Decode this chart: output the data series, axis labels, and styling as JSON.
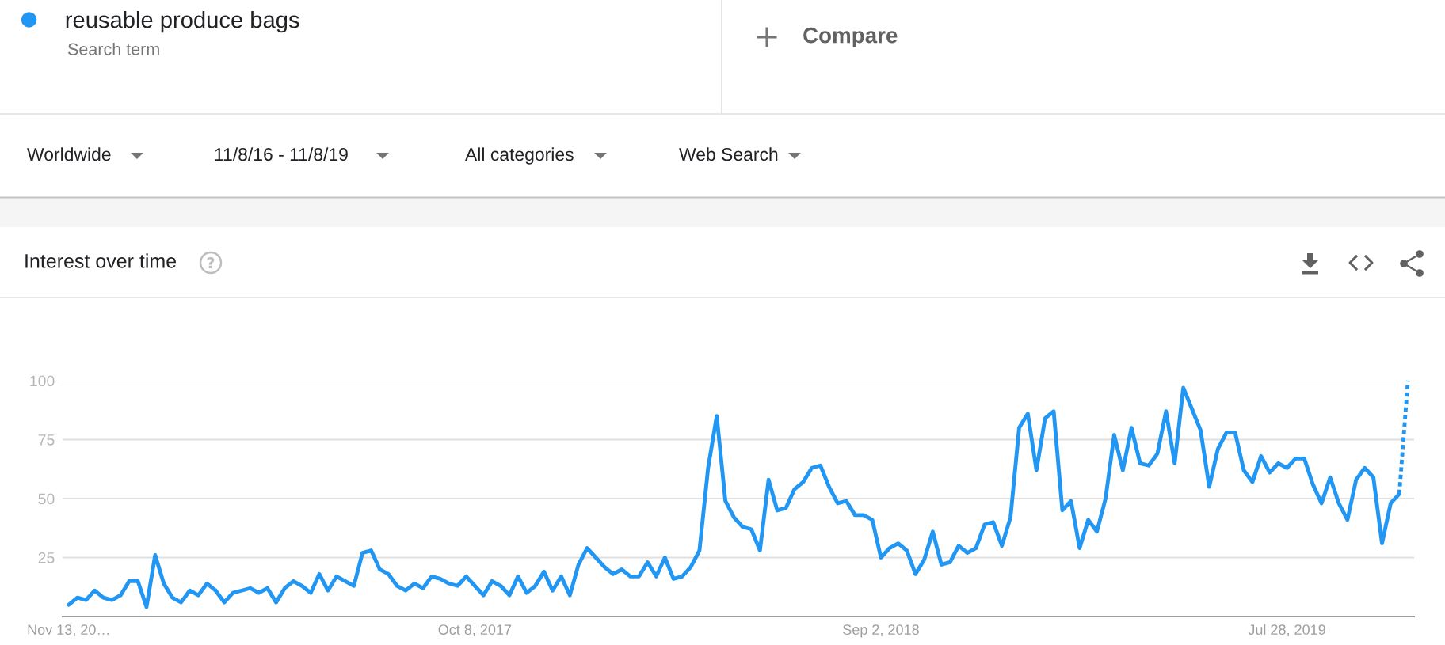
{
  "chart_data": {
    "type": "line",
    "title": "Interest over time",
    "annotations": [
      "Search term",
      "Compare",
      "Worldwide",
      "11/8/16 - 11/8/19",
      "All categories",
      "Web Search"
    ],
    "x": [
      "2016-11-13",
      "2016-11-20",
      "2016-11-27",
      "2016-12-04",
      "2016-12-11",
      "2016-12-18",
      "2016-12-25",
      "2017-01-01",
      "2017-01-08",
      "2017-01-15",
      "2017-01-22",
      "2017-01-29",
      "2017-02-05",
      "2017-02-12",
      "2017-02-19",
      "2017-02-26",
      "2017-03-05",
      "2017-03-12",
      "2017-03-19",
      "2017-03-26",
      "2017-04-02",
      "2017-04-09",
      "2017-04-16",
      "2017-04-23",
      "2017-04-30",
      "2017-05-07",
      "2017-05-14",
      "2017-05-21",
      "2017-05-28",
      "2017-06-04",
      "2017-06-11",
      "2017-06-18",
      "2017-06-25",
      "2017-07-02",
      "2017-07-09",
      "2017-07-16",
      "2017-07-23",
      "2017-07-30",
      "2017-08-06",
      "2017-08-13",
      "2017-08-20",
      "2017-08-27",
      "2017-09-03",
      "2017-09-10",
      "2017-09-17",
      "2017-09-24",
      "2017-10-01",
      "2017-10-08",
      "2017-10-15",
      "2017-10-22",
      "2017-10-29",
      "2017-11-05",
      "2017-11-12",
      "2017-11-19",
      "2017-11-26",
      "2017-12-03",
      "2017-12-10",
      "2017-12-17",
      "2017-12-24",
      "2017-12-31",
      "2018-01-07",
      "2018-01-14",
      "2018-01-21",
      "2018-01-28",
      "2018-02-04",
      "2018-02-11",
      "2018-02-18",
      "2018-02-25",
      "2018-03-04",
      "2018-03-11",
      "2018-03-18",
      "2018-03-25",
      "2018-04-01",
      "2018-04-08",
      "2018-04-15",
      "2018-04-22",
      "2018-04-29",
      "2018-05-06",
      "2018-05-13",
      "2018-05-20",
      "2018-05-27",
      "2018-06-03",
      "2018-06-10",
      "2018-06-17",
      "2018-06-24",
      "2018-07-01",
      "2018-07-08",
      "2018-07-15",
      "2018-07-22",
      "2018-07-29",
      "2018-08-05",
      "2018-08-12",
      "2018-08-19",
      "2018-08-26",
      "2018-09-02",
      "2018-09-09",
      "2018-09-16",
      "2018-09-23",
      "2018-09-30",
      "2018-10-07",
      "2018-10-14",
      "2018-10-21",
      "2018-10-28",
      "2018-11-04",
      "2018-11-11",
      "2018-11-18",
      "2018-11-25",
      "2018-12-02",
      "2018-12-09",
      "2018-12-16",
      "2018-12-23",
      "2018-12-30",
      "2019-01-06",
      "2019-01-13",
      "2019-01-20",
      "2019-01-27",
      "2019-02-03",
      "2019-02-10",
      "2019-02-17",
      "2019-02-24",
      "2019-03-03",
      "2019-03-10",
      "2019-03-17",
      "2019-03-24",
      "2019-03-31",
      "2019-04-07",
      "2019-04-14",
      "2019-04-21",
      "2019-04-28",
      "2019-05-05",
      "2019-05-12",
      "2019-05-19",
      "2019-05-26",
      "2019-06-02",
      "2019-06-09",
      "2019-06-16",
      "2019-06-23",
      "2019-06-30",
      "2019-07-07",
      "2019-07-14",
      "2019-07-21",
      "2019-07-28",
      "2019-08-04",
      "2019-08-11",
      "2019-08-18",
      "2019-08-25",
      "2019-09-01",
      "2019-09-08",
      "2019-09-15",
      "2019-09-22",
      "2019-09-29",
      "2019-10-06",
      "2019-10-13",
      "2019-10-20",
      "2019-10-27"
    ],
    "series": [
      {
        "name": "reusable produce bags",
        "color": "#2196f3",
        "values": [
          5,
          8,
          7,
          11,
          8,
          7,
          9,
          15,
          15,
          4,
          26,
          14,
          8,
          6,
          11,
          9,
          14,
          11,
          6,
          10,
          11,
          12,
          10,
          12,
          6,
          12,
          15,
          13,
          10,
          18,
          11,
          17,
          15,
          13,
          27,
          28,
          20,
          18,
          13,
          11,
          14,
          12,
          17,
          16,
          14,
          13,
          17,
          13,
          9,
          15,
          13,
          9,
          17,
          10,
          13,
          19,
          11,
          17,
          9,
          22,
          29,
          25,
          21,
          18,
          20,
          17,
          17,
          23,
          17,
          25,
          16,
          17,
          21,
          28,
          63,
          85,
          49,
          42,
          38,
          37,
          28,
          58,
          45,
          46,
          54,
          57,
          63,
          64,
          55,
          48,
          49,
          43,
          43,
          41,
          25,
          29,
          31,
          28,
          18,
          24,
          36,
          22,
          23,
          30,
          27,
          29,
          39,
          40,
          30,
          42,
          80,
          86,
          62,
          84,
          87,
          45,
          49,
          29,
          41,
          36,
          50,
          77,
          62,
          80,
          65,
          64,
          69,
          87,
          65,
          97,
          88,
          79,
          55,
          71,
          78,
          78,
          62,
          57,
          68,
          61,
          65,
          63,
          67,
          67,
          56,
          48,
          59,
          48,
          41,
          58,
          63,
          59,
          31,
          48,
          52
        ]
      },
      {
        "color": "#2196f3",
        "line_style": "dotted",
        "x": [
          "2019-10-27",
          "2019-11-03"
        ],
        "values": [
          52,
          100
        ]
      }
    ],
    "xlim": [
      "2016-11-08",
      "2019-11-08"
    ],
    "xticks": [
      {
        "value": "2016-11-13",
        "label": "Nov 13, 20…"
      },
      {
        "value": "2017-10-08",
        "label": "Oct 8, 2017"
      },
      {
        "value": "2018-09-02",
        "label": "Sep 2, 2018"
      },
      {
        "value": "2019-07-28",
        "label": "Jul 28, 2019"
      }
    ],
    "ylim": [
      0,
      100
    ],
    "yticks": [
      25,
      50,
      75,
      100
    ],
    "grid": "y",
    "legend": "top left",
    "marker": "none",
    "line_style": "solid"
  }
}
